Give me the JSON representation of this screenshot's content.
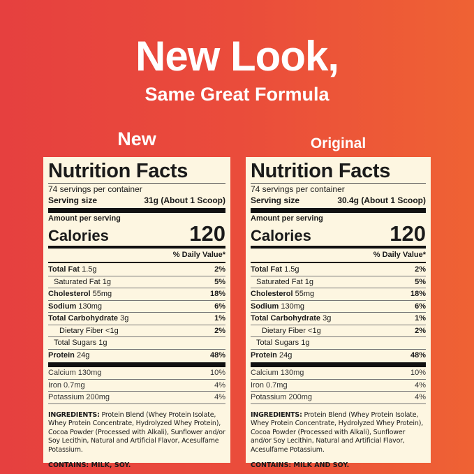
{
  "headline": "New Look,",
  "subheadline": "Same Great Formula",
  "panels": [
    {
      "label": "New",
      "title": "Nutrition Facts",
      "servings": "74 servings per container",
      "serving_size_label": "Serving size",
      "serving_size": "31g (About 1 Scoop)",
      "amount_label": "Amount per serving",
      "calories_label": "Calories",
      "calories": "120",
      "dv_label": "% Daily Value*",
      "nutrients": [
        {
          "name": "Total Fat",
          "amount": "1.5g",
          "dv": "2%"
        },
        {
          "name": "Saturated Fat",
          "amount": "1g",
          "dv": "5%"
        },
        {
          "name": "Cholesterol",
          "amount": "55mg",
          "dv": "18%"
        },
        {
          "name": "Sodium",
          "amount": "130mg",
          "dv": "6%"
        },
        {
          "name": "Total Carbohydrate",
          "amount": "3g",
          "dv": "1%"
        },
        {
          "name": "Dietary Fiber",
          "amount": "<1g",
          "dv": "2%"
        },
        {
          "name": "Total Sugars",
          "amount": "1g",
          "dv": ""
        },
        {
          "name": "Protein",
          "amount": "24g",
          "dv": "48%"
        }
      ],
      "minerals": [
        {
          "name": "Calcium 130mg",
          "dv": "10%"
        },
        {
          "name": "Iron 0.7mg",
          "dv": "4%"
        },
        {
          "name": "Potassium 200mg",
          "dv": "4%"
        }
      ],
      "ingredients_label": "INGREDIENTS:",
      "ingredients": " Protein Blend (Whey Protein Isolate, Whey Protein Concentrate, Hydrolyzed Whey Protein), Cocoa Powder (Processed with Alkali), Sunflower and/or Soy Lecithin, Natural and Artificial Flavor, Acesulfame Potassium.",
      "contains": "CONTAINS: MILK, SOY."
    },
    {
      "label": "Original",
      "title": "Nutrition Facts",
      "servings": "74 servings per container",
      "serving_size_label": "Serving size",
      "serving_size": "30.4g (About 1 Scoop)",
      "amount_label": "Amount per serving",
      "calories_label": "Calories",
      "calories": "120",
      "dv_label": "% Daily Value*",
      "nutrients": [
        {
          "name": "Total Fat",
          "amount": "1.5g",
          "dv": "2%"
        },
        {
          "name": "Saturated Fat",
          "amount": "1g",
          "dv": "5%"
        },
        {
          "name": "Cholesterol",
          "amount": "55mg",
          "dv": "18%"
        },
        {
          "name": "Sodium",
          "amount": "130mg",
          "dv": "6%"
        },
        {
          "name": "Total Carbohydrate",
          "amount": "3g",
          "dv": "1%"
        },
        {
          "name": "Dietary Fiber",
          "amount": "<1g",
          "dv": "2%"
        },
        {
          "name": "Total Sugars",
          "amount": "1g",
          "dv": ""
        },
        {
          "name": "Protein",
          "amount": "24g",
          "dv": "48%"
        }
      ],
      "minerals": [
        {
          "name": "Calcium 130mg",
          "dv": "10%"
        },
        {
          "name": "Iron 0.7mg",
          "dv": "4%"
        },
        {
          "name": "Potassium 200mg",
          "dv": "4%"
        }
      ],
      "ingredients_label": "INGREDIENTS:",
      "ingredients": " Protein Blend (Whey Protein Isolate, Whey Protein Concentrate, Hydrolyzed Whey Protein), Cocoa Powder (Processed with Alkali), Sunflower and/or Soy Lecithin, Natural and Artificial Flavor, Acesulfame Potassium.",
      "contains": "CONTAINS: MILK AND SOY."
    }
  ]
}
